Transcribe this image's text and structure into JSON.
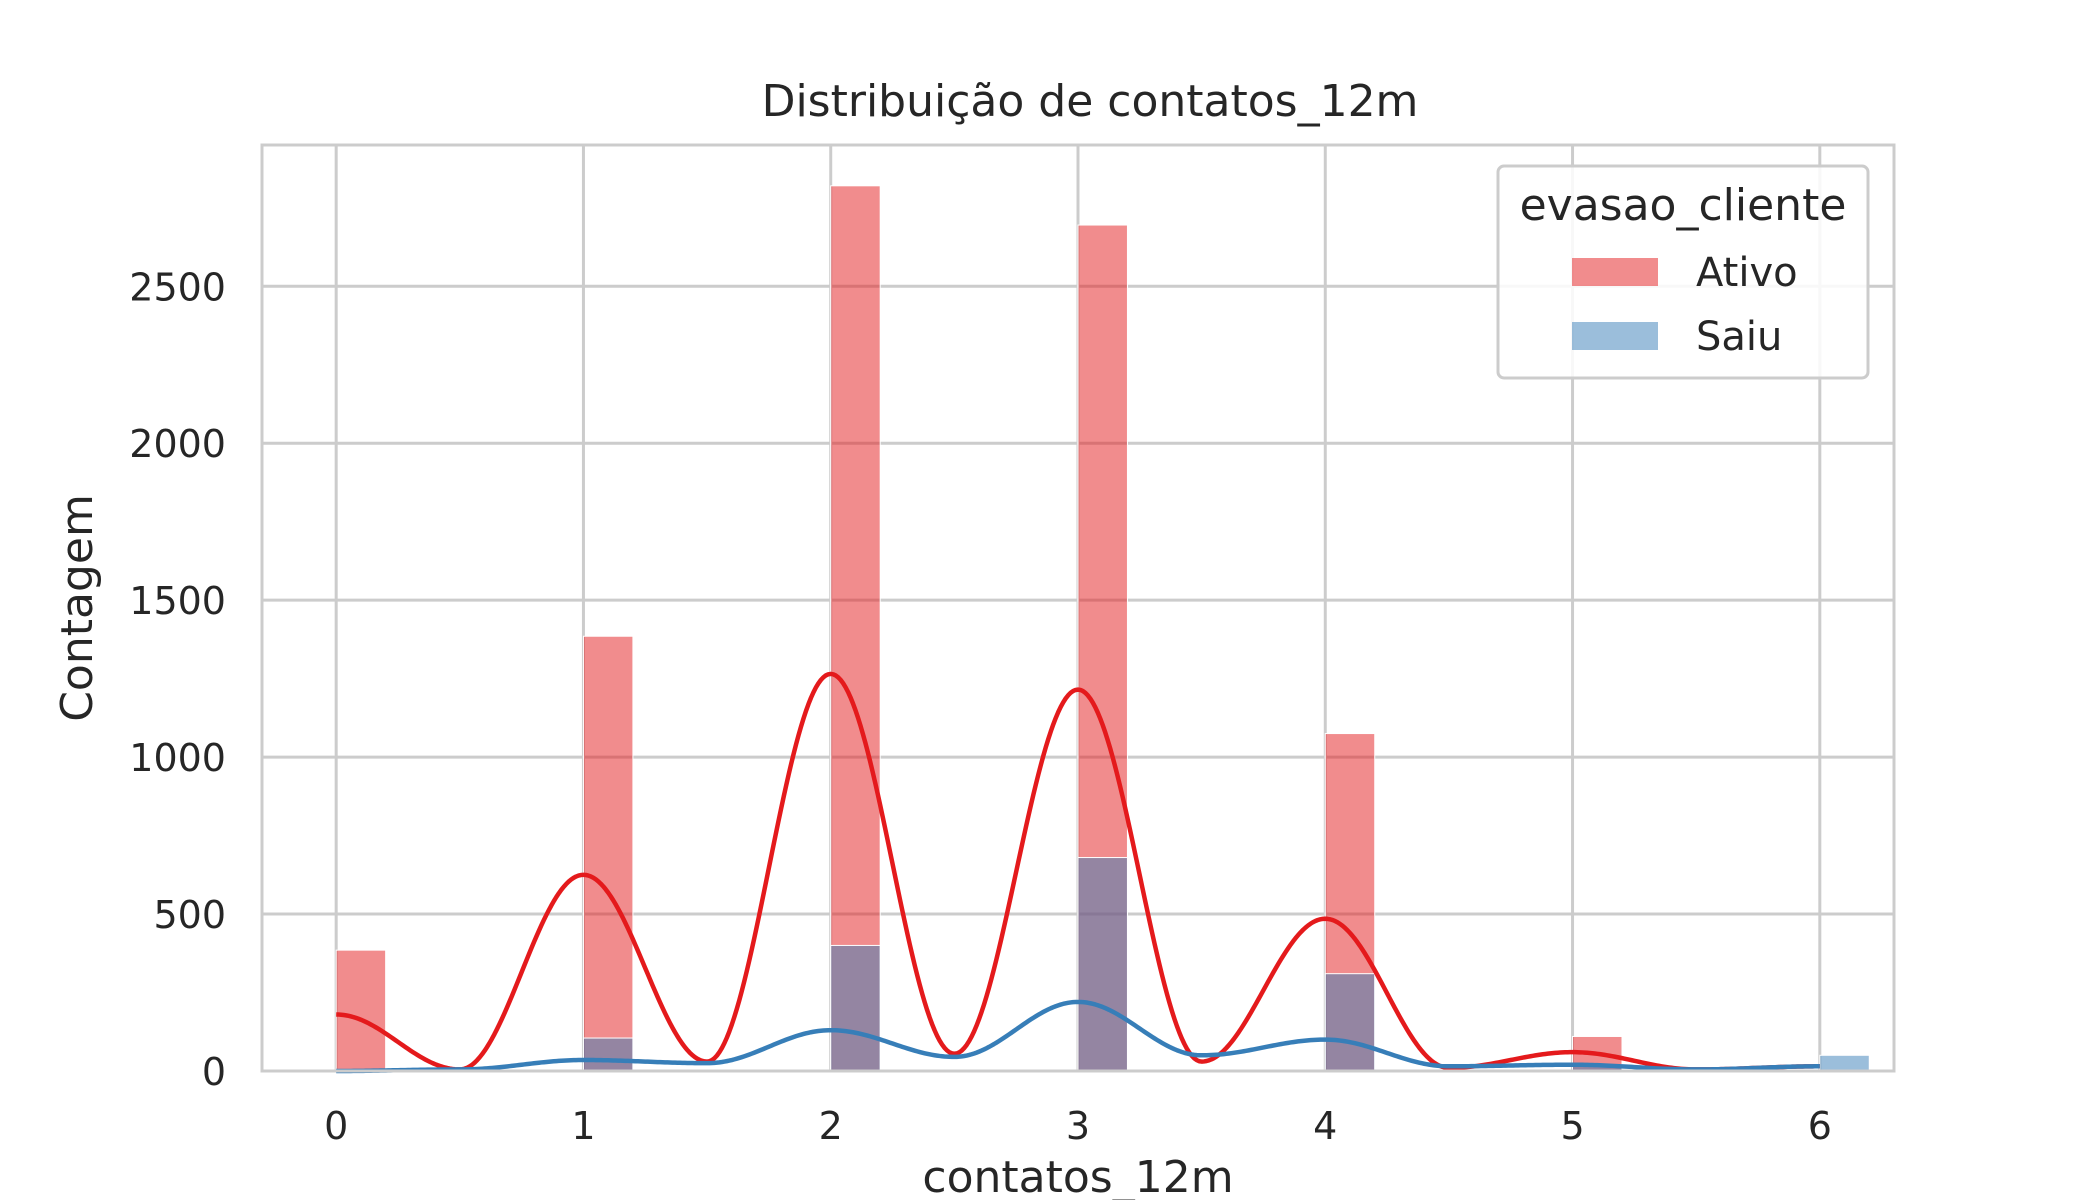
{
  "chart_data": {
    "type": "bar",
    "title": "Distribuição de contatos_12m",
    "xlabel": "contatos_12m",
    "ylabel": "Contagem",
    "xlim": [
      -0.3,
      6.3
    ],
    "ylim": [
      0,
      2950
    ],
    "x_ticks": [
      0,
      1,
      2,
      3,
      4,
      5,
      6
    ],
    "y_ticks": [
      0,
      500,
      1000,
      1500,
      2000,
      2500
    ],
    "grid": true,
    "legend": {
      "title": "evasao_cliente",
      "placement": "top-right"
    },
    "bar_width": 0.2,
    "series": [
      {
        "name": "Ativo",
        "color": "#e41a1c",
        "x": [
          0,
          1,
          2,
          3,
          4,
          5,
          6
        ],
        "values": [
          385,
          1385,
          2820,
          2695,
          1075,
          110,
          0
        ],
        "kde_x": [
          0,
          0.5,
          1,
          1.5,
          2,
          2.5,
          3,
          3.5,
          4,
          4.5,
          5,
          5.5,
          6
        ],
        "kde_y": [
          180,
          5,
          625,
          30,
          1265,
          55,
          1215,
          30,
          485,
          10,
          60,
          5,
          15
        ]
      },
      {
        "name": "Saiu",
        "color": "#377eb8",
        "x": [
          0,
          1,
          2,
          3,
          4,
          5,
          6
        ],
        "values": [
          5,
          105,
          400,
          680,
          310,
          20,
          50
        ],
        "kde_x": [
          0,
          0.5,
          1,
          1.5,
          2,
          2.5,
          3,
          3.5,
          4,
          4.5,
          5,
          5.5,
          6
        ],
        "kde_y": [
          0,
          5,
          35,
          25,
          130,
          45,
          220,
          50,
          100,
          15,
          20,
          5,
          15
        ]
      }
    ]
  }
}
